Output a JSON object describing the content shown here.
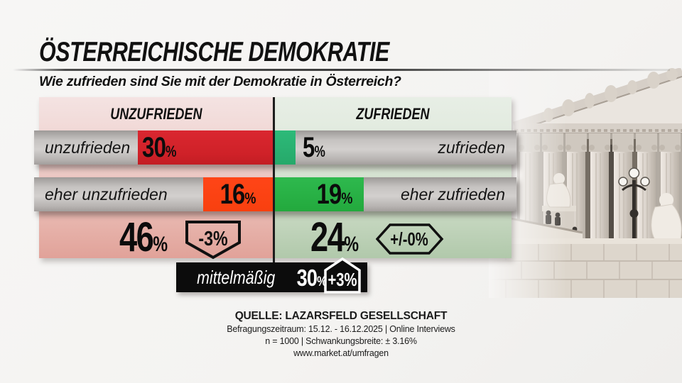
{
  "header": {
    "title": "ÖSTERREICHISCHE DEMOKRATIE",
    "subtitle": "Wie zufrieden sind Sie mit der Demokratie in Österreich?"
  },
  "chart_data": {
    "type": "bar",
    "title": "Wie zufrieden sind Sie mit der Demokratie in Österreich?",
    "unit": "%",
    "categories": [
      "unzufrieden",
      "eher unzufrieden",
      "eher zufrieden",
      "zufrieden",
      "mittelmäßig"
    ],
    "values": [
      30,
      16,
      19,
      5,
      30
    ],
    "groups": {
      "left": {
        "label": "UNZUFRIEDEN",
        "total": 46,
        "change": "-3%"
      },
      "right": {
        "label": "ZUFRIEDEN",
        "total": 24,
        "change": "+/-0%"
      },
      "middle": {
        "label": "mittelmäßig",
        "value": 30,
        "change": "+3%"
      }
    },
    "colors": {
      "unzufrieden": "#d2232a",
      "eher_unzufrieden": "#fc4314",
      "eher_zufrieden": "#28b347",
      "zufrieden": "#2ab475",
      "mittelmaessig_bar": "#0c0c0c",
      "left_panel": "#e5aca3",
      "right_panel": "#b3caae"
    }
  },
  "rows": [
    {
      "left_label": "unzufrieden",
      "left_value": "30",
      "right_value": "5",
      "right_label": "zufrieden"
    },
    {
      "left_label": "eher unzufrieden",
      "left_value": "16",
      "right_value": "19",
      "right_label": "eher zufrieden"
    }
  ],
  "totals": {
    "left_value": "46",
    "left_change": "-3%",
    "right_value": "24",
    "right_change": "+/-0%"
  },
  "middle": {
    "label": "mittelmäßig",
    "value": "30",
    "change": "+3%"
  },
  "symbols": {
    "percent": "%"
  },
  "source": {
    "line1": "QUELLE:  LAZARSFELD GESELLSCHAFT",
    "line2": "Befragungszeitraum:  15.12. - 16.12.2025  | Online Interviews",
    "line3": "n = 1000 |  Schwankungsbreite: ±  3.16%",
    "line4": "www.market.at/umfragen"
  }
}
